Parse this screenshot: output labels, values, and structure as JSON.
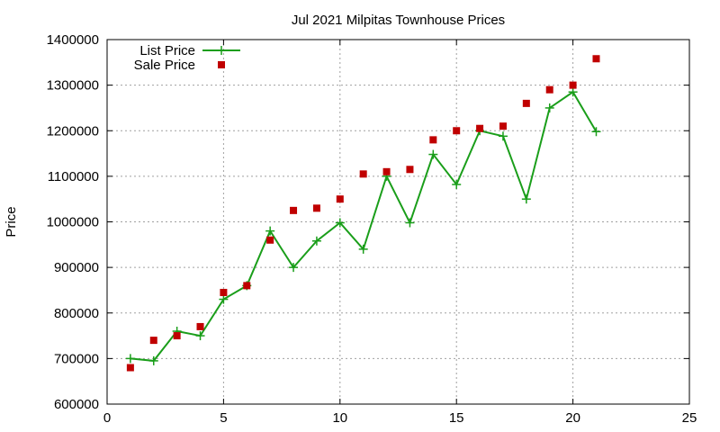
{
  "chart_data": {
    "type": "scatter",
    "title": "Jul 2021 Milpitas Townhouse Prices",
    "xlabel": "",
    "ylabel": "Price",
    "xlim": [
      0,
      25
    ],
    "ylim": [
      600000,
      1400000
    ],
    "x_ticks": [
      "0",
      "5",
      "10",
      "15",
      "20",
      "25"
    ],
    "y_ticks": [
      "600000",
      "700000",
      "800000",
      "900000",
      "1000000",
      "1100000",
      "1200000",
      "1300000",
      "1400000"
    ],
    "grid": true,
    "legend_placement": "top-left",
    "series": [
      {
        "name": "List Price",
        "style": "line-with-plus-markers",
        "color": "#1a9e1a",
        "x": [
          1,
          2,
          3,
          4,
          5,
          6,
          7,
          8,
          9,
          10,
          11,
          12,
          13,
          14,
          15,
          16,
          17,
          18,
          19,
          20,
          21
        ],
        "values": [
          700000,
          695000,
          760000,
          750000,
          830000,
          860000,
          980000,
          900000,
          958000,
          998000,
          940000,
          1100000,
          998000,
          1148000,
          1082000,
          1200000,
          1188000,
          1050000,
          1250000,
          1285000,
          1198000
        ]
      },
      {
        "name": "Sale Price",
        "style": "square-markers",
        "color": "#c00000",
        "x": [
          1,
          2,
          3,
          4,
          5,
          6,
          7,
          8,
          9,
          10,
          11,
          12,
          13,
          14,
          15,
          16,
          17,
          18,
          19,
          20,
          21
        ],
        "values": [
          680000,
          740000,
          750000,
          770000,
          845000,
          860000,
          960000,
          1025000,
          1030000,
          1050000,
          1105000,
          1110000,
          1115000,
          1180000,
          1200000,
          1205000,
          1210000,
          1260000,
          1290000,
          1300000,
          1358000
        ]
      }
    ]
  }
}
